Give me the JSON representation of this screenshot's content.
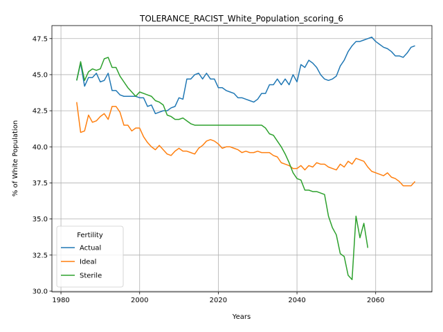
{
  "chart_data": {
    "type": "line",
    "title": "TOLERANCE_RACIST_White_Population_scoring_6",
    "xlabel": "Years",
    "ylabel": "% of White Population",
    "xlim": [
      1977.7,
      2074.3
    ],
    "ylim": [
      29.95,
      48.4
    ],
    "xticks": [
      1980,
      2000,
      2020,
      2040,
      2060
    ],
    "yticks": [
      30.0,
      32.5,
      35.0,
      37.5,
      40.0,
      42.5,
      45.0,
      47.5
    ],
    "xtick_labels": [
      "1980",
      "2000",
      "2020",
      "2040",
      "2060"
    ],
    "ytick_labels": [
      "30.0",
      "32.5",
      "35.0",
      "37.5",
      "40.0",
      "42.5",
      "45.0",
      "47.5"
    ],
    "grid": true,
    "legend": {
      "title": "Fertility",
      "placement": "lower-left"
    },
    "series": [
      {
        "name": "Actual",
        "color": "#1f77b4",
        "x": [
          1984,
          1985,
          1986,
          1987,
          1988,
          1989,
          1990,
          1991,
          1992,
          1993,
          1994,
          1995,
          1996,
          1997,
          1998,
          1999,
          2000,
          2001,
          2002,
          2003,
          2004,
          2005,
          2006,
          2007,
          2008,
          2009,
          2010,
          2011,
          2012,
          2013,
          2014,
          2015,
          2016,
          2017,
          2018,
          2019,
          2020,
          2021,
          2022,
          2023,
          2024,
          2025,
          2026,
          2027,
          2028,
          2029,
          2030,
          2031,
          2032,
          2033,
          2034,
          2035,
          2036,
          2037,
          2038,
          2039,
          2040,
          2041,
          2042,
          2043,
          2044,
          2045,
          2046,
          2047,
          2048,
          2049,
          2050,
          2051,
          2052,
          2053,
          2054,
          2055,
          2056,
          2057,
          2058,
          2059,
          2060,
          2061,
          2062,
          2063,
          2064,
          2065,
          2066,
          2067,
          2068,
          2069,
          2070
        ],
        "values": [
          44.6,
          45.8,
          44.2,
          44.8,
          44.8,
          45.1,
          44.5,
          44.6,
          45.1,
          43.9,
          43.9,
          43.6,
          43.5,
          43.5,
          43.5,
          43.5,
          43.4,
          43.4,
          42.8,
          42.9,
          42.3,
          42.4,
          42.5,
          42.5,
          42.7,
          42.8,
          43.4,
          43.3,
          44.7,
          44.7,
          45.0,
          45.1,
          44.7,
          45.1,
          44.7,
          44.7,
          44.1,
          44.1,
          43.9,
          43.8,
          43.7,
          43.4,
          43.4,
          43.3,
          43.2,
          43.1,
          43.3,
          43.7,
          43.7,
          44.3,
          44.3,
          44.7,
          44.3,
          44.7,
          44.3,
          45.0,
          44.5,
          45.7,
          45.5,
          46.0,
          45.8,
          45.5,
          45.0,
          44.7,
          44.6,
          44.7,
          44.9,
          45.6,
          46.0,
          46.6,
          47.0,
          47.3,
          47.3,
          47.4,
          47.5,
          47.6,
          47.3,
          47.1,
          46.9,
          46.8,
          46.6,
          46.3,
          46.3,
          46.2,
          46.5,
          46.9,
          47.0
        ]
      },
      {
        "name": "Ideal",
        "color": "#ff7f0e",
        "x": [
          1984,
          1985,
          1986,
          1987,
          1988,
          1989,
          1990,
          1991,
          1992,
          1993,
          1994,
          1995,
          1996,
          1997,
          1998,
          1999,
          2000,
          2001,
          2002,
          2003,
          2004,
          2005,
          2006,
          2007,
          2008,
          2009,
          2010,
          2011,
          2012,
          2013,
          2014,
          2015,
          2016,
          2017,
          2018,
          2019,
          2020,
          2021,
          2022,
          2023,
          2024,
          2025,
          2026,
          2027,
          2028,
          2029,
          2030,
          2031,
          2032,
          2033,
          2034,
          2035,
          2036,
          2037,
          2038,
          2039,
          2040,
          2041,
          2042,
          2043,
          2044,
          2045,
          2046,
          2047,
          2048,
          2049,
          2050,
          2051,
          2052,
          2053,
          2054,
          2055,
          2056,
          2057,
          2058,
          2059,
          2060,
          2061,
          2062,
          2063,
          2064,
          2065,
          2066,
          2067,
          2068,
          2069,
          2070
        ],
        "values": [
          43.1,
          41.0,
          41.1,
          42.2,
          41.7,
          41.8,
          42.1,
          42.3,
          41.9,
          42.8,
          42.8,
          42.4,
          41.5,
          41.5,
          41.1,
          41.3,
          41.3,
          40.7,
          40.3,
          40.0,
          39.8,
          40.1,
          39.8,
          39.5,
          39.4,
          39.7,
          39.9,
          39.7,
          39.7,
          39.6,
          39.5,
          39.9,
          40.1,
          40.4,
          40.5,
          40.4,
          40.2,
          39.9,
          40.0,
          40.0,
          39.9,
          39.8,
          39.6,
          39.7,
          39.6,
          39.6,
          39.7,
          39.6,
          39.6,
          39.6,
          39.4,
          39.3,
          38.9,
          38.8,
          38.7,
          38.5,
          38.5,
          38.7,
          38.4,
          38.7,
          38.6,
          38.9,
          38.8,
          38.8,
          38.6,
          38.5,
          38.4,
          38.8,
          38.6,
          39.0,
          38.8,
          39.2,
          39.1,
          39.0,
          38.6,
          38.3,
          38.2,
          38.1,
          38.0,
          38.2,
          37.9,
          37.8,
          37.6,
          37.3,
          37.3,
          37.3,
          37.6
        ]
      },
      {
        "name": "Sterile",
        "color": "#2ca02c",
        "x": [
          1984,
          1985,
          1986,
          1987,
          1988,
          1989,
          1990,
          1991,
          1992,
          1993,
          1994,
          1995,
          1996,
          1997,
          1998,
          1999,
          2000,
          2001,
          2002,
          2003,
          2004,
          2005,
          2006,
          2007,
          2008,
          2009,
          2010,
          2011,
          2012,
          2013,
          2014,
          2015,
          2016,
          2017,
          2018,
          2019,
          2020,
          2021,
          2022,
          2023,
          2024,
          2025,
          2026,
          2027,
          2028,
          2029,
          2030,
          2031,
          2032,
          2033,
          2034,
          2035,
          2036,
          2037,
          2038,
          2039,
          2040,
          2041,
          2042,
          2043,
          2044,
          2045,
          2046,
          2047,
          2048,
          2049,
          2050,
          2051,
          2052,
          2053,
          2054,
          2055,
          2056,
          2057,
          2058
        ],
        "values": [
          44.6,
          45.9,
          44.6,
          45.2,
          45.4,
          45.3,
          45.4,
          46.1,
          46.2,
          45.5,
          45.5,
          44.9,
          44.5,
          44.1,
          43.8,
          43.5,
          43.8,
          43.7,
          43.6,
          43.5,
          43.2,
          43.1,
          42.9,
          42.2,
          42.1,
          41.9,
          41.9,
          42.0,
          41.8,
          41.6,
          41.5,
          41.5,
          41.5,
          41.5,
          41.5,
          41.5,
          41.5,
          41.5,
          41.5,
          41.5,
          41.5,
          41.5,
          41.5,
          41.5,
          41.5,
          41.5,
          41.5,
          41.5,
          41.3,
          40.9,
          40.8,
          40.4,
          40.0,
          39.5,
          38.9,
          38.2,
          37.8,
          37.7,
          37.0,
          37.0,
          36.9,
          36.9,
          36.8,
          36.7,
          35.2,
          34.4,
          33.9,
          32.6,
          32.4,
          31.1,
          30.8,
          35.2,
          33.7,
          34.7,
          33.0
        ]
      }
    ]
  }
}
